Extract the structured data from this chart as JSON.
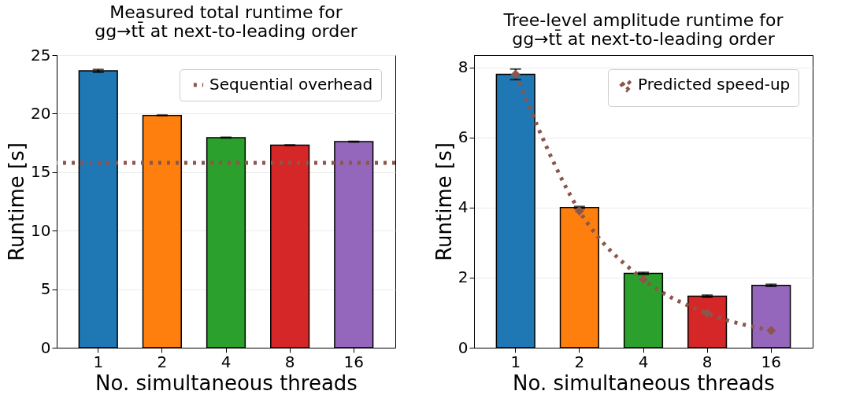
{
  "chart_data": [
    {
      "type": "bar",
      "title": "Measured total runtime for\ngg→tt̄ at next-to-leading order",
      "xlabel": "No. simultaneous threads",
      "ylabel": "Runtime [s]",
      "categories": [
        "1",
        "2",
        "4",
        "8",
        "16"
      ],
      "values": [
        23.65,
        19.85,
        17.95,
        17.3,
        17.6
      ],
      "errors": [
        0.12,
        0.03,
        0.03,
        0.03,
        0.03
      ],
      "colors": [
        "#1f77b4",
        "#ff7f0e",
        "#2ca02c",
        "#d62728",
        "#9467bd"
      ],
      "ylim": [
        0,
        25
      ],
      "yticks": [
        0,
        5,
        10,
        15,
        20,
        25
      ],
      "grid": "y",
      "legend": "top right",
      "ref_lines": [
        {
          "axis": "y",
          "value": 15.8,
          "label": "Sequential overhead",
          "color": "#8c564b",
          "line_style": "dotted"
        }
      ]
    },
    {
      "type": "bar",
      "title": "Tree-level amplitude runtime for\ngg→tt̄ at next-to-leading order",
      "xlabel": "No. simultaneous threads",
      "ylabel": "Runtime [s]",
      "categories": [
        "1",
        "2",
        "4",
        "8",
        "16"
      ],
      "values": [
        7.8,
        4.0,
        2.12,
        1.47,
        1.78
      ],
      "errors": [
        0.15,
        0.03,
        0.03,
        0.03,
        0.03
      ],
      "colors": [
        "#1f77b4",
        "#ff7f0e",
        "#2ca02c",
        "#d62728",
        "#9467bd"
      ],
      "ylim": [
        0,
        8.35
      ],
      "yticks": [
        0,
        2,
        4,
        6,
        8
      ],
      "grid": "y",
      "legend": "top right",
      "series": [
        {
          "name": "Predicted speed-up",
          "type": "line",
          "color": "#8c564b",
          "values": [
            7.8,
            3.9,
            1.95,
            0.98,
            0.49
          ],
          "marker": "diamond",
          "line_style": "dotted"
        }
      ]
    }
  ]
}
